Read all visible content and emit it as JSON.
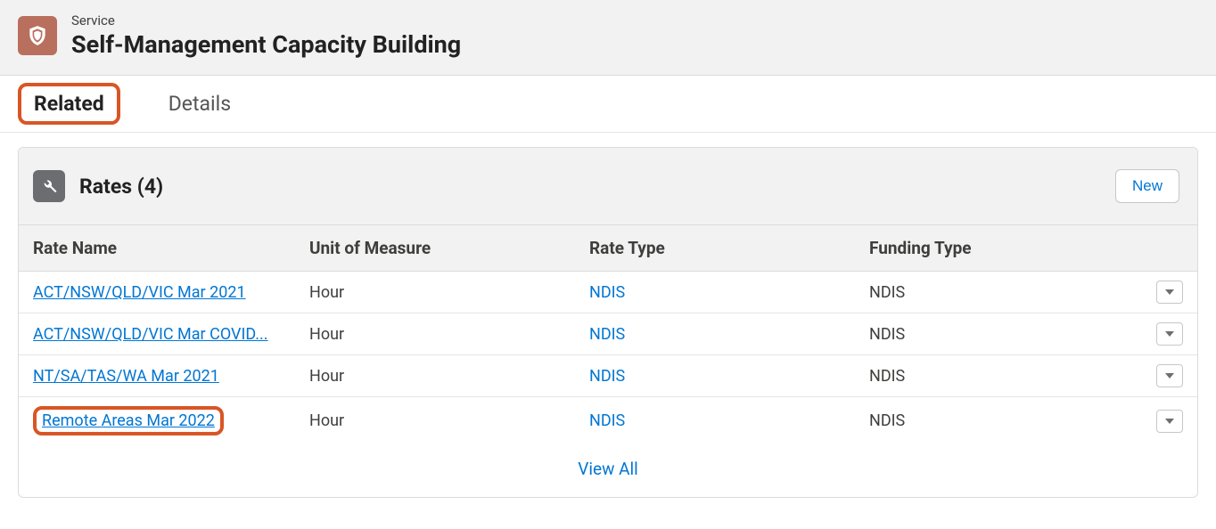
{
  "header": {
    "object_label": "Service",
    "title": "Self-Management Capacity Building"
  },
  "tabs": {
    "related": "Related",
    "details": "Details"
  },
  "rates_panel": {
    "title": "Rates (4)",
    "new_label": "New",
    "columns": {
      "rate_name": "Rate Name",
      "unit": "Unit of Measure",
      "rate_type": "Rate Type",
      "funding_type": "Funding Type"
    },
    "rows": [
      {
        "rate_name": "ACT/NSW/QLD/VIC Mar 2021",
        "unit": "Hour",
        "rate_type": "NDIS",
        "funding_type": "NDIS",
        "highlighted": false
      },
      {
        "rate_name": "ACT/NSW/QLD/VIC Mar COVID...",
        "unit": "Hour",
        "rate_type": "NDIS",
        "funding_type": "NDIS",
        "highlighted": false
      },
      {
        "rate_name": "NT/SA/TAS/WA Mar 2021",
        "unit": "Hour",
        "rate_type": "NDIS",
        "funding_type": "NDIS",
        "highlighted": false
      },
      {
        "rate_name": "Remote Areas Mar 2022",
        "unit": "Hour",
        "rate_type": "NDIS",
        "funding_type": "NDIS",
        "highlighted": true
      }
    ],
    "view_all_label": "View All"
  },
  "colors": {
    "header_icon_bg": "#b96f5e",
    "panel_icon_bg": "#6b6d70",
    "link_color": "#0176d3",
    "highlight_border": "#d85625",
    "panel_bg": "#f3f2f2",
    "border": "#dddbda"
  }
}
